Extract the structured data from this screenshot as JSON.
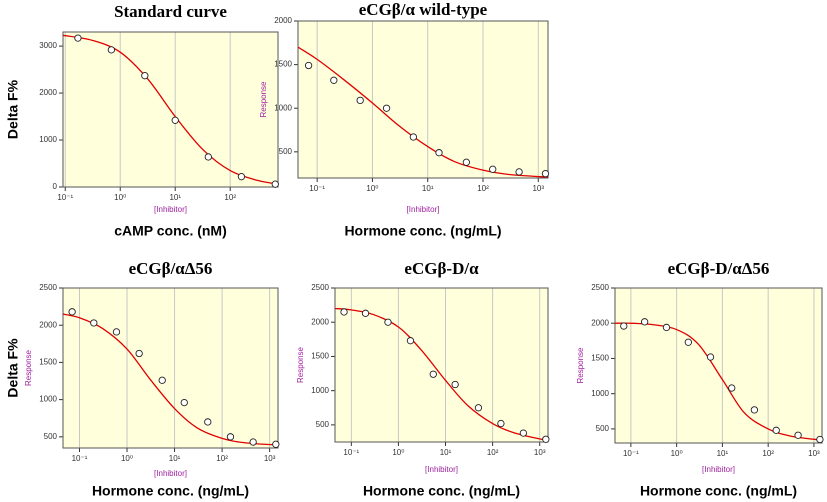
{
  "chart_data": [
    {
      "type": "scatter",
      "title": "Standard curve",
      "ylabel": "Delta F%",
      "xlabel": "cAMP conc. (nM)",
      "xlabel_small": "[Inhibitor]",
      "log_x": true,
      "grid": true,
      "xlim": [
        0.091,
        740
      ],
      "xticks": [
        {
          "value": 0.1,
          "label": "10⁻¹"
        },
        {
          "value": 1,
          "label": "10⁰"
        },
        {
          "value": 10,
          "label": "10¹"
        },
        {
          "value": 100,
          "label": "10²"
        }
      ],
      "ylim": [
        0,
        3300
      ],
      "yticks": [
        0,
        1000,
        2000,
        3000
      ],
      "x": [
        0.17,
        0.69,
        2.8,
        10,
        40,
        160,
        660
      ],
      "values": [
        3170,
        2920,
        2370,
        1420,
        640,
        220,
        60
      ],
      "curve": {
        "x": [
          0.091,
          0.316,
          1,
          3.16,
          10,
          31.6,
          100,
          316,
          740
        ],
        "values": [
          3230,
          3120,
          2870,
          2300,
          1500,
          800,
          350,
          140,
          60
        ]
      }
    },
    {
      "type": "scatter",
      "title": "eCGβ/α wild-type",
      "ylabel_small": "Response",
      "xlabel": "Hormone conc. (ng/mL)",
      "xlabel_small": "[Inhibitor]",
      "log_x": true,
      "grid": true,
      "xlim": [
        0.045,
        1500
      ],
      "xticks": [
        {
          "value": 0.1,
          "label": "10⁻¹"
        },
        {
          "value": 1,
          "label": "10⁰"
        },
        {
          "value": 10,
          "label": "10¹"
        },
        {
          "value": 100,
          "label": "10²"
        },
        {
          "value": 1000,
          "label": "10³"
        }
      ],
      "ylim": [
        200,
        2000
      ],
      "yticks": [
        500,
        1000,
        1500,
        2000
      ],
      "x": [
        0.07,
        0.2,
        0.6,
        1.8,
        5.5,
        16,
        50,
        150,
        450,
        1350
      ],
      "values": [
        1490,
        1320,
        1090,
        1000,
        670,
        490,
        380,
        300,
        270,
        250
      ],
      "curve": {
        "x": [
          0.045,
          0.1,
          0.3,
          1,
          3,
          10,
          30,
          100,
          300,
          1500
        ],
        "values": [
          1700,
          1560,
          1330,
          1060,
          800,
          560,
          390,
          290,
          240,
          210
        ]
      }
    },
    {
      "type": "scatter",
      "title": "eCGβ/αΔ56",
      "ylabel": "Delta F%",
      "ylabel_small": "Response",
      "xlabel": "Hormone conc. (ng/mL)",
      "xlabel_small": "[Inhibitor]",
      "log_x": true,
      "grid": true,
      "xlim": [
        0.045,
        1500
      ],
      "xticks": [
        {
          "value": 0.1,
          "label": "10⁻¹"
        },
        {
          "value": 1,
          "label": "10⁰"
        },
        {
          "value": 10,
          "label": "10¹"
        },
        {
          "value": 100,
          "label": "10²"
        },
        {
          "value": 1000,
          "label": "10³"
        }
      ],
      "ylim": [
        350,
        2500
      ],
      "yticks": [
        500,
        1000,
        1500,
        2000,
        2500
      ],
      "x": [
        0.07,
        0.2,
        0.6,
        1.8,
        5.5,
        16,
        50,
        150,
        450,
        1350
      ],
      "values": [
        2180,
        2030,
        1910,
        1620,
        1260,
        960,
        700,
        500,
        430,
        400
      ],
      "curve": {
        "x": [
          0.045,
          0.1,
          0.3,
          1,
          3,
          10,
          30,
          100,
          300,
          1500
        ],
        "values": [
          2150,
          2100,
          1960,
          1680,
          1280,
          880,
          620,
          480,
          420,
          390
        ]
      }
    },
    {
      "type": "scatter",
      "title": "eCGβ-D/α",
      "ylabel_small": "Response",
      "xlabel": "Hormone conc. (ng/mL)",
      "xlabel_small": "[Inhibitor]",
      "log_x": true,
      "grid": true,
      "xlim": [
        0.045,
        1500
      ],
      "xticks": [
        {
          "value": 0.1,
          "label": "10⁻¹"
        },
        {
          "value": 1,
          "label": "10⁰"
        },
        {
          "value": 10,
          "label": "10¹"
        },
        {
          "value": 100,
          "label": "10²"
        },
        {
          "value": 1000,
          "label": "10³"
        }
      ],
      "ylim": [
        250,
        2500
      ],
      "yticks": [
        500,
        1000,
        1500,
        2000,
        2500
      ],
      "x": [
        0.07,
        0.2,
        0.6,
        1.8,
        5.5,
        16,
        50,
        150,
        450,
        1350
      ],
      "values": [
        2150,
        2130,
        2000,
        1730,
        1240,
        1090,
        750,
        520,
        380,
        290
      ],
      "curve": {
        "x": [
          0.045,
          0.1,
          0.3,
          1,
          3,
          10,
          30,
          100,
          300,
          1500
        ],
        "values": [
          2200,
          2180,
          2110,
          1930,
          1600,
          1150,
          780,
          520,
          380,
          270
        ]
      }
    },
    {
      "type": "scatter",
      "title": "eCGβ-D/αΔ56",
      "ylabel_small": "Response",
      "xlabel": "Hormone conc. (ng/mL)",
      "xlabel_small": "[Inhibitor]",
      "log_x": true,
      "grid": true,
      "xlim": [
        0.045,
        1500
      ],
      "xticks": [
        {
          "value": 0.1,
          "label": "10⁻¹"
        },
        {
          "value": 1,
          "label": "10⁰"
        },
        {
          "value": 10,
          "label": "10¹"
        },
        {
          "value": 100,
          "label": "10²"
        },
        {
          "value": 1000,
          "label": "10³"
        }
      ],
      "ylim": [
        300,
        2500
      ],
      "yticks": [
        500,
        1000,
        1500,
        2000,
        2500
      ],
      "x": [
        0.07,
        0.2,
        0.6,
        1.8,
        5.5,
        16,
        50,
        150,
        450,
        1350
      ],
      "values": [
        1960,
        2020,
        1940,
        1730,
        1520,
        1080,
        770,
        480,
        410,
        350
      ],
      "curve": {
        "x": [
          0.045,
          0.1,
          0.3,
          1,
          3,
          10,
          30,
          100,
          300,
          1500
        ],
        "values": [
          2000,
          2000,
          1980,
          1910,
          1700,
          1200,
          730,
          500,
          400,
          340
        ]
      }
    }
  ]
}
